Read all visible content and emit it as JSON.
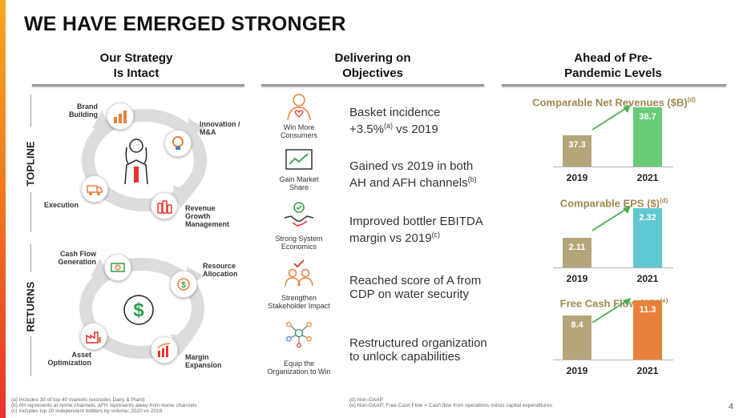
{
  "title": "WE HAVE EMERGED STRONGER",
  "columns": {
    "strategy": {
      "line1": "Our Strategy",
      "line2": "Is Intact"
    },
    "objectives": {
      "line1": "Delivering on",
      "line2": "Objectives"
    },
    "prepandemic": {
      "line1": "Ahead of Pre-",
      "line2": "Pandemic Levels"
    }
  },
  "side_labels": {
    "topline": "TOPLINE",
    "returns": "RETURNS"
  },
  "topline_nodes": {
    "brand_building": {
      "l1": "Brand",
      "l2": "Building"
    },
    "innovation": {
      "l1": "Innovation /",
      "l2": "M&A"
    },
    "execution": {
      "l1": "Execution"
    },
    "revenue": {
      "l1": "Revenue",
      "l2": "Growth",
      "l3": "Management"
    }
  },
  "returns_nodes": {
    "cash_flow": {
      "l1": "Cash Flow",
      "l2": "Generation"
    },
    "resource": {
      "l1": "Resource",
      "l2": "Allocation"
    },
    "asset": {
      "l1": "Asset",
      "l2": "Optimization"
    },
    "margin": {
      "l1": "Margin",
      "l2": "Expansion"
    }
  },
  "objectives": [
    {
      "cap1": "Win More",
      "cap2": "Consumers",
      "text1": "Basket incidence",
      "text2": "+3.5%",
      "sup2": "(a)",
      "text2b": " vs 2019"
    },
    {
      "cap1": "Gain Market",
      "cap2": "Share",
      "text1": "Gained vs 2019 in both",
      "text2": "AH and AFH channels",
      "sup2": "(b)",
      "text2b": ""
    },
    {
      "cap1": "Strong System",
      "cap2": "Economics",
      "text1": "Improved bottler EBITDA",
      "text2": "margin vs 2019",
      "sup2": "(c)",
      "text2b": ""
    },
    {
      "cap1": "Strengthen",
      "cap2": "Stakeholder Impact",
      "text1": "Reached score of A from",
      "text2": "CDP on water security",
      "sup2": "",
      "text2b": ""
    },
    {
      "cap1": "Equip the",
      "cap2": "Organization to Win",
      "text1": "Restructured organization",
      "text2": "to unlock capabilities",
      "sup2": "",
      "text2b": ""
    }
  ],
  "charts": [
    {
      "title": "Comparable Net Revenues ($B)",
      "sup": "(d)",
      "y1": "2019",
      "y2": "2021",
      "v1": "37.3",
      "v2": "38.7",
      "c1": "#b5a57a",
      "c2": "#6acb78"
    },
    {
      "title": "Comparable EPS ($)",
      "sup": "(d)",
      "y1": "2019",
      "y2": "2021",
      "v1": "2.11",
      "v2": "2.32",
      "c1": "#b5a57a",
      "c2": "#5fc8d0"
    },
    {
      "title": "Free Cash Flow ($B)",
      "sup": "(e)",
      "y1": "2019",
      "y2": "2021",
      "v1": "8.4",
      "v2": "11.3",
      "c1": "#b5a57a",
      "c2": "#e8813b"
    }
  ],
  "footnotes": {
    "a": "(a) Includes 30 of top 40 markets (excludes Dairy & Plant)",
    "b": "(b) AH represents at-home channels, AFH represents away-from-home channels",
    "c": "(c) Includes top 20 independent bottlers by volume; 2020 vs 2019",
    "d": "(d) Non-GAAP",
    "e": "(e) Non-GAAP; Free Cash Flow = Cash flow from operations minus capital expenditures"
  },
  "page_number": "4",
  "colors": {
    "accent_gold": "#a0894f",
    "arrow_green": "#4caf50",
    "node_orange": "#e8813b",
    "dollar_green": "#2e9e4a"
  }
}
